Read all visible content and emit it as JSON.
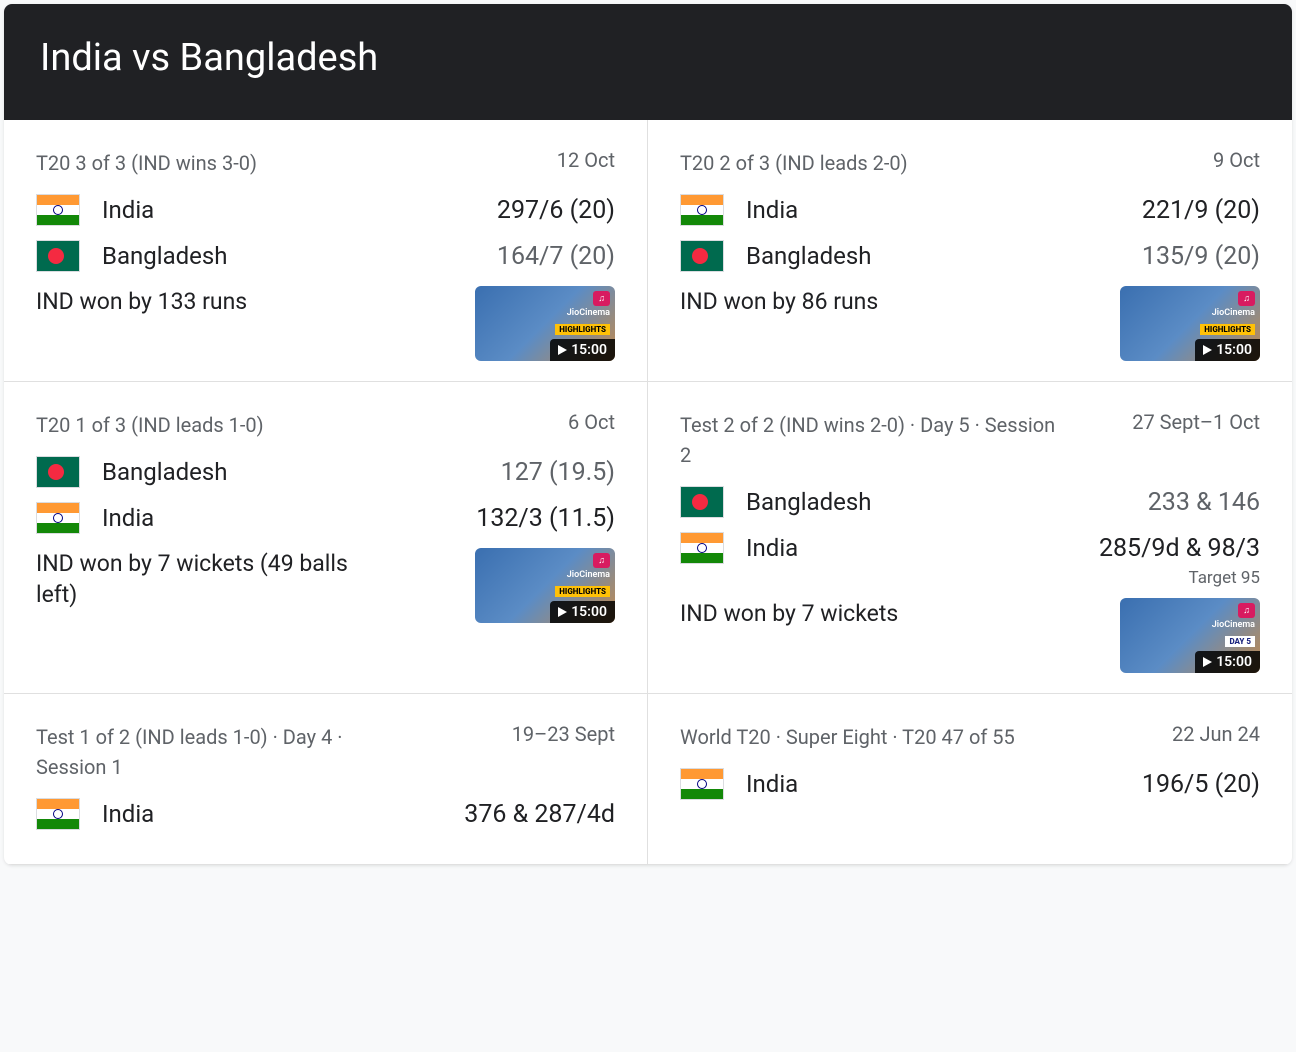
{
  "header": {
    "title": "India vs Bangladesh"
  },
  "teams": {
    "india": "India",
    "bangladesh": "Bangladesh"
  },
  "thumb": {
    "brand": "JioCinema",
    "highlights": "HIGHLIGHTS"
  },
  "matches": [
    {
      "meta": "T20 3 of 3 (IND wins 3-0)",
      "date": "12 Oct",
      "rows": [
        {
          "flag": "india",
          "name": "India",
          "score": "297/6 (20)"
        },
        {
          "flag": "bangladesh",
          "name": "Bangladesh",
          "score": "164/7 (20)",
          "muted": true
        }
      ],
      "result": "IND won by 133 runs",
      "thumb_duration": "15:00",
      "thumb": true
    },
    {
      "meta": "T20 2 of 3 (IND leads 2-0)",
      "date": "9 Oct",
      "rows": [
        {
          "flag": "india",
          "name": "India",
          "score": "221/9 (20)"
        },
        {
          "flag": "bangladesh",
          "name": "Bangladesh",
          "score": "135/9 (20)",
          "muted": true
        }
      ],
      "result": "IND won by 86 runs",
      "thumb_duration": "15:00",
      "thumb": true
    },
    {
      "meta": "T20 1 of 3 (IND leads 1-0)",
      "date": "6 Oct",
      "rows": [
        {
          "flag": "bangladesh",
          "name": "Bangladesh",
          "score": "127 (19.5)",
          "muted": true
        },
        {
          "flag": "india",
          "name": "India",
          "score": "132/3 (11.5)"
        }
      ],
      "result": "IND won by 7 wickets (49 balls left)",
      "thumb_duration": "15:00",
      "thumb": true
    },
    {
      "meta": "Test 2 of 2 (IND wins 2-0) · Day 5 · Session 2",
      "date": "27 Sept–1 Oct",
      "rows": [
        {
          "flag": "bangladesh",
          "name": "Bangladesh",
          "score": "233 & 146",
          "muted": true
        },
        {
          "flag": "india",
          "name": "India",
          "score": "285/9d & 98/3",
          "target": "Target 95"
        }
      ],
      "result": "IND won by 7 wickets",
      "thumb_duration": "15:00",
      "thumb": true,
      "thumb_tag": "DAY 5"
    },
    {
      "meta": "Test 1 of 2 (IND leads 1-0) · Day 4 · Session 1",
      "date": "19–23 Sept",
      "rows": [
        {
          "flag": "india",
          "name": "India",
          "score": "376 & 287/4d"
        }
      ],
      "result": "",
      "thumb": false
    },
    {
      "meta": "World T20 · Super Eight · T20 47 of 55",
      "date": "22 Jun 24",
      "rows": [
        {
          "flag": "india",
          "name": "India",
          "score": "196/5 (20)"
        }
      ],
      "result": "",
      "thumb": false
    }
  ]
}
